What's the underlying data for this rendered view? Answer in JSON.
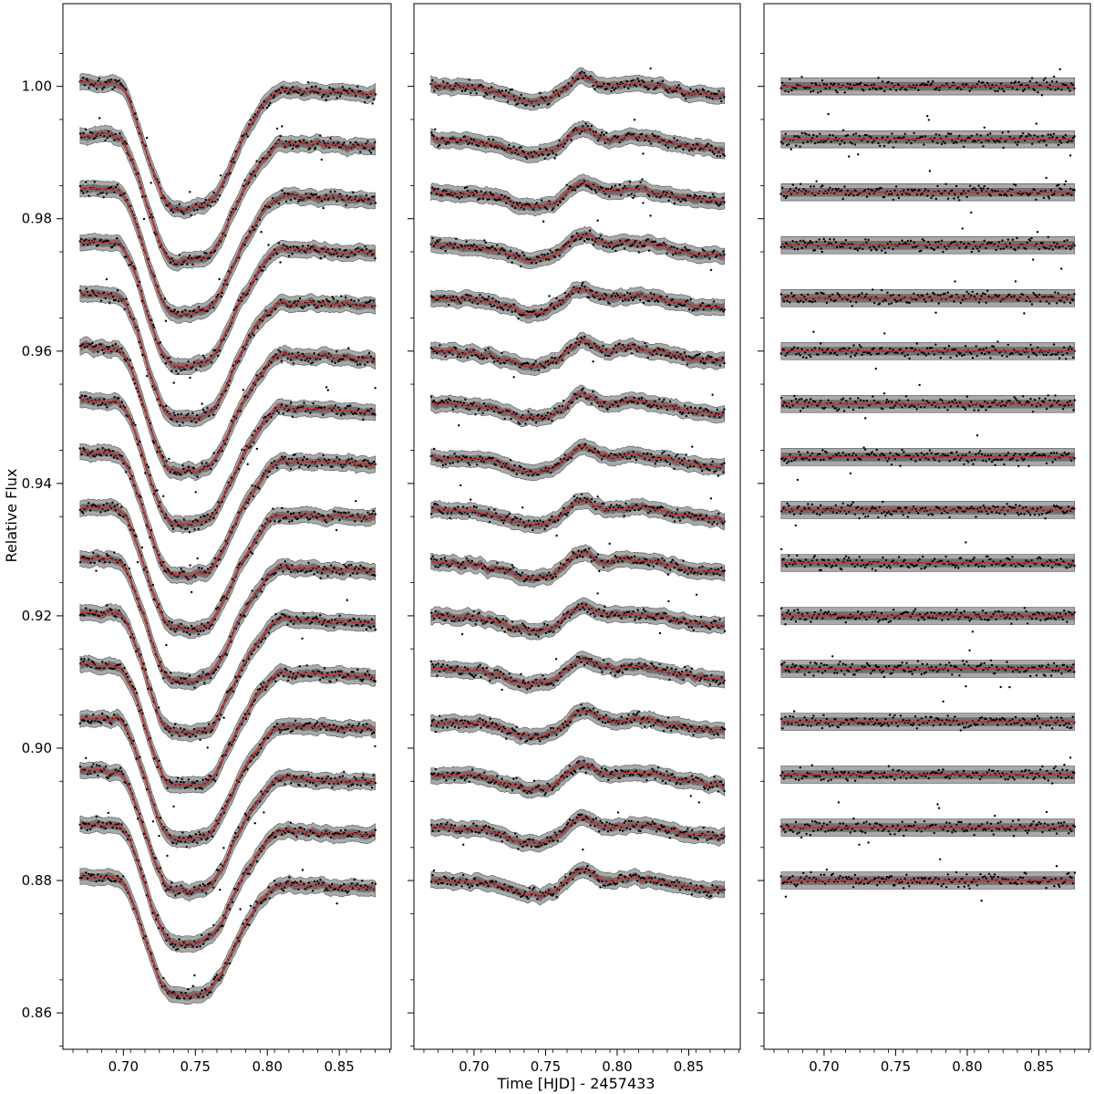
{
  "chart_data": {
    "type": "line",
    "layout": "three panels side by side, shared y axis",
    "xlabel": "Time [HJD] - 2457433",
    "ylabel": "Relative Flux",
    "xlim": [
      0.658,
      0.886
    ],
    "ylim": [
      0.8545,
      1.0125
    ],
    "x_ticks": [
      0.7,
      0.75,
      0.8,
      0.85
    ],
    "x_tick_labels": [
      "0.70",
      "0.75",
      "0.80",
      "0.85"
    ],
    "y_ticks": [
      0.86,
      0.88,
      0.9,
      0.92,
      0.94,
      0.96,
      0.98,
      1.0
    ],
    "y_tick_labels": [
      "0.86",
      "0.88",
      "0.90",
      "0.92",
      "0.94",
      "0.96",
      "0.98",
      "1.00"
    ],
    "x_range_data": [
      0.67,
      0.875
    ],
    "n_curves_per_panel": 16,
    "curve_offsets": [
      1.0,
      0.992,
      0.984,
      0.976,
      0.968,
      0.96,
      0.952,
      0.944,
      0.936,
      0.928,
      0.92,
      0.912,
      0.904,
      0.896,
      0.888,
      0.88
    ],
    "panels": [
      {
        "id": "light-curves",
        "transit": {
          "ingress_start": 0.695,
          "ingress_end": 0.735,
          "bottom_end": 0.758,
          "egress_end": 0.812,
          "depth_range": [
            0.0185,
            0.0175
          ]
        },
        "spot_bump": {
          "center": 0.778,
          "width": 0.018,
          "amplitude": 0.0028
        },
        "trend": {
          "start_offset": 0.0006,
          "end_offset": -0.0012
        },
        "band_halfwidth": 0.0012
      },
      {
        "id": "transit-removed",
        "dip": {
          "center": 0.74,
          "width": 0.022,
          "depth": 0.0018
        },
        "spot_bump": {
          "center": 0.775,
          "width": 0.012,
          "amplitude": 0.0022
        },
        "hump": {
          "center": 0.815,
          "width": 0.028,
          "amplitude": 0.0014
        },
        "trend": {
          "start_offset": 0.0,
          "end_offset": -0.0015
        },
        "band_halfwidth": 0.0012
      },
      {
        "id": "residuals",
        "flat": true,
        "band_halfwidth": 0.0013
      }
    ],
    "colors": {
      "points": "#000000",
      "model": "#d62728",
      "band_outer": "#a9a9a9",
      "band_inner": "#707070",
      "axes": "#000000"
    }
  }
}
